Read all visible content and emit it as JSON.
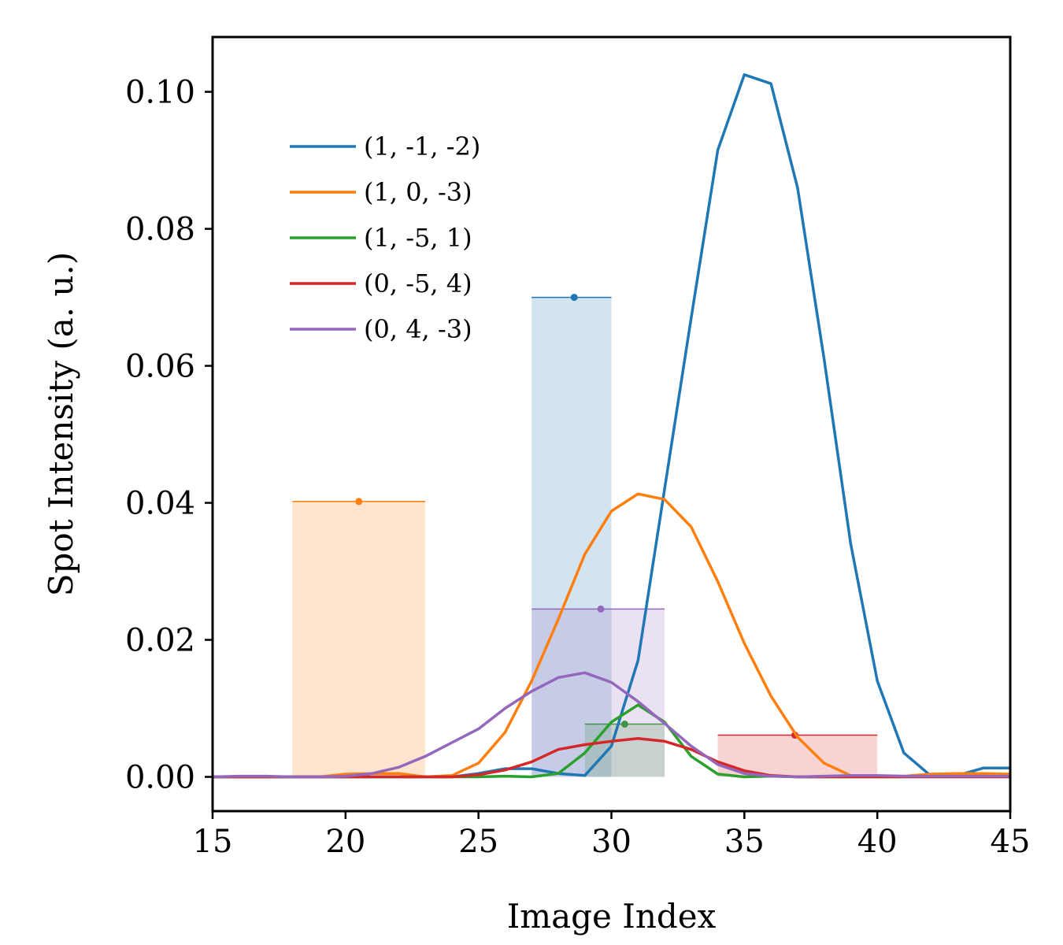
{
  "chart_data": {
    "type": "line",
    "title": "",
    "xlabel": "Image Index",
    "ylabel": "Spot Intensity (a. u.)",
    "xlim": [
      15,
      45
    ],
    "ylim": [
      -0.005,
      0.108
    ],
    "xticks": [
      15,
      20,
      25,
      30,
      35,
      40,
      45
    ],
    "xtick_labels": [
      "15",
      "20",
      "25",
      "30",
      "35",
      "40",
      "45"
    ],
    "yticks": [
      0.0,
      0.02,
      0.04,
      0.06,
      0.08,
      0.1
    ],
    "ytick_labels": [
      "0.00",
      "0.02",
      "0.04",
      "0.06",
      "0.08",
      "0.10"
    ],
    "grid": false,
    "legend_position": "upper-left",
    "series": [
      {
        "name": "(1, -1, -2)",
        "color": "#1f77b4",
        "x": [
          15,
          16,
          17,
          18,
          19,
          20,
          21,
          22,
          23,
          24,
          25,
          26,
          27,
          28,
          29,
          30,
          31,
          32,
          33,
          34,
          35,
          36,
          37,
          38,
          39,
          40,
          41,
          42,
          43,
          44,
          45
        ],
        "y": [
          0.0,
          0.0,
          0.0,
          0.0,
          0.0,
          0.0,
          0.0,
          0.0,
          0.0,
          0.0,
          0.0005,
          0.0012,
          0.0012,
          0.0005,
          0.0002,
          0.0045,
          0.017,
          0.042,
          0.067,
          0.0915,
          0.1025,
          0.1012,
          0.086,
          0.061,
          0.034,
          0.014,
          0.0035,
          0.0002,
          0.0002,
          0.0013,
          0.0013
        ],
        "box": {
          "x_start": 27,
          "x_end": 30,
          "height": 0.07,
          "marker_x": 28.6
        }
      },
      {
        "name": "(1, 0, -3)",
        "color": "#ff7f0e",
        "x": [
          15,
          16,
          17,
          18,
          19,
          20,
          21,
          22,
          23,
          24,
          25,
          26,
          27,
          28,
          29,
          30,
          31,
          32,
          33,
          34,
          35,
          36,
          37,
          38,
          39,
          40,
          41,
          42,
          43,
          44,
          45
        ],
        "y": [
          0.0,
          0.0,
          0.0,
          0.0,
          0.0,
          0.0004,
          0.0005,
          0.0005,
          0.0,
          0.0002,
          0.002,
          0.0065,
          0.014,
          0.023,
          0.0325,
          0.0388,
          0.0413,
          0.0405,
          0.0365,
          0.0285,
          0.0195,
          0.0118,
          0.0058,
          0.002,
          0.0002,
          0.0001,
          0.0001,
          0.0004,
          0.0005,
          0.0005,
          0.0004
        ],
        "box": {
          "x_start": 18,
          "x_end": 23,
          "height": 0.0402,
          "marker_x": 20.5
        }
      },
      {
        "name": "(1, -5, 1)",
        "color": "#2ca02c",
        "x": [
          15,
          16,
          17,
          18,
          19,
          20,
          21,
          22,
          23,
          24,
          25,
          26,
          27,
          28,
          29,
          30,
          31,
          32,
          33,
          34,
          35,
          36,
          37,
          38,
          39,
          40,
          41,
          42,
          43,
          44,
          45
        ],
        "y": [
          0.0,
          0.0,
          0.0,
          0.0,
          0.0,
          0.0,
          0.0,
          0.0,
          0.0,
          0.0,
          0.0,
          0.0001,
          0.0,
          0.0005,
          0.0035,
          0.008,
          0.0105,
          0.008,
          0.003,
          0.0004,
          0.0,
          0.0001,
          0.0,
          0.0,
          0.0,
          0.0,
          0.0,
          0.0,
          0.0,
          0.0,
          0.0
        ],
        "box": {
          "x_start": 29,
          "x_end": 32,
          "height": 0.0077,
          "marker_x": 30.5
        }
      },
      {
        "name": "(0, -5, 4)",
        "color": "#d62728",
        "x": [
          15,
          16,
          17,
          18,
          19,
          20,
          21,
          22,
          23,
          24,
          25,
          26,
          27,
          28,
          29,
          30,
          31,
          32,
          33,
          34,
          35,
          36,
          37,
          38,
          39,
          40,
          41,
          42,
          43,
          44,
          45
        ],
        "y": [
          0.0,
          0.0,
          0.0,
          0.0,
          0.0,
          0.0,
          0.0,
          0.0,
          0.0,
          0.0,
          0.0003,
          0.001,
          0.0022,
          0.004,
          0.0047,
          0.0052,
          0.0056,
          0.0052,
          0.004,
          0.0022,
          0.0009,
          0.0002,
          0.0,
          0.0,
          0.0,
          0.0,
          0.0,
          0.0,
          0.0,
          0.0,
          0.0
        ],
        "box": {
          "x_start": 34,
          "x_end": 40,
          "height": 0.0061,
          "marker_x": 36.9
        }
      },
      {
        "name": "(0, 4, -3)",
        "color": "#9467bd",
        "x": [
          15,
          16,
          17,
          18,
          19,
          20,
          21,
          22,
          23,
          24,
          25,
          26,
          27,
          28,
          29,
          30,
          31,
          32,
          33,
          34,
          35,
          36,
          37,
          38,
          39,
          40,
          41,
          42,
          43,
          44,
          45
        ],
        "y": [
          0.0,
          0.0001,
          0.0001,
          0.0,
          0.0,
          0.0001,
          0.0005,
          0.0014,
          0.003,
          0.005,
          0.007,
          0.01,
          0.0125,
          0.0145,
          0.0152,
          0.0138,
          0.011,
          0.0078,
          0.0045,
          0.0018,
          0.0005,
          0.0001,
          0.0,
          0.0001,
          0.0002,
          0.0002,
          0.0001,
          0.0001,
          0.0001,
          0.0001,
          0.0001
        ],
        "box": {
          "x_start": 27,
          "x_end": 32,
          "height": 0.0245,
          "marker_x": 29.6
        }
      }
    ]
  }
}
